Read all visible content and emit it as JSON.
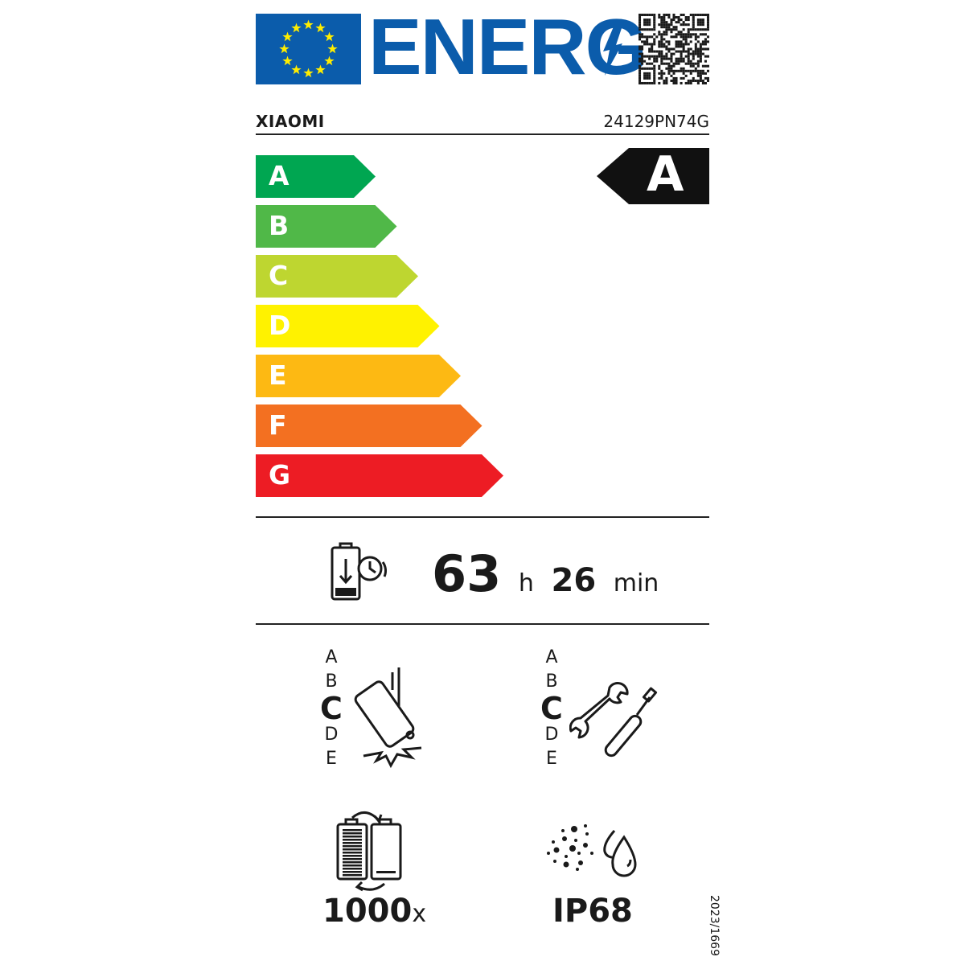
{
  "header": {
    "logo_text": "ENERG",
    "brand": "XIAOMI",
    "model": "24129PN74G"
  },
  "colors": {
    "eu_blue": "#0B5CAB",
    "eu_star": "#FFED00"
  },
  "scale": [
    {
      "label": "A",
      "color": "#00A651"
    },
    {
      "label": "B",
      "color": "#50B848"
    },
    {
      "label": "C",
      "color": "#BED630"
    },
    {
      "label": "D",
      "color": "#FFF200"
    },
    {
      "label": "E",
      "color": "#FDB913"
    },
    {
      "label": "F",
      "color": "#F37021"
    },
    {
      "label": "G",
      "color": "#ED1C24"
    }
  ],
  "energy_class": "A",
  "battery_endurance": {
    "hours": "63",
    "hours_unit": "h",
    "minutes": "26",
    "minutes_unit": "min",
    "icon": "battery-clock-icon"
  },
  "drop_resistance": {
    "classes": [
      "A",
      "B",
      "C",
      "D",
      "E"
    ],
    "selected": "C",
    "icon": "phone-drop-icon"
  },
  "repairability": {
    "classes": [
      "A",
      "B",
      "C",
      "D",
      "E"
    ],
    "selected": "C",
    "icon": "wrench-screwdriver-icon"
  },
  "battery_cycles": {
    "value": "1000",
    "unit": "x",
    "icon": "battery-cycle-icon"
  },
  "ingress_protection": {
    "value": "IP68",
    "icon": "dust-water-icon"
  },
  "regulation": "2023/1669"
}
